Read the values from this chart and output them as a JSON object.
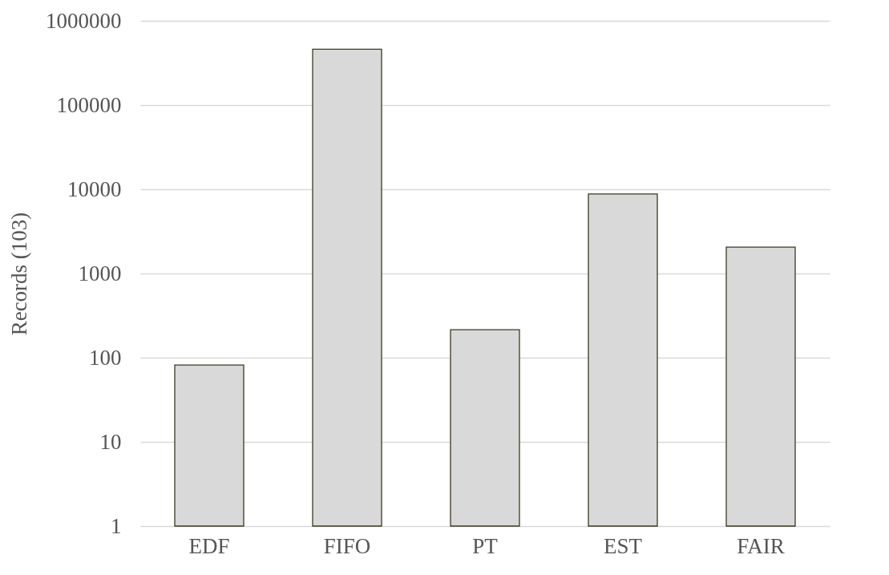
{
  "chart_data": {
    "type": "bar",
    "ylabel": "Records (103)",
    "categories": [
      "EDF",
      "FIFO",
      "PT",
      "EST",
      "FAIR"
    ],
    "values": [
      82,
      460000,
      215,
      8800,
      2060
    ],
    "color": "#d9d9d9",
    "log": true,
    "ylim": [
      1,
      1000000
    ],
    "yticks": [
      1,
      10,
      100,
      1000,
      10000,
      100000,
      1000000
    ],
    "grid": "y"
  }
}
